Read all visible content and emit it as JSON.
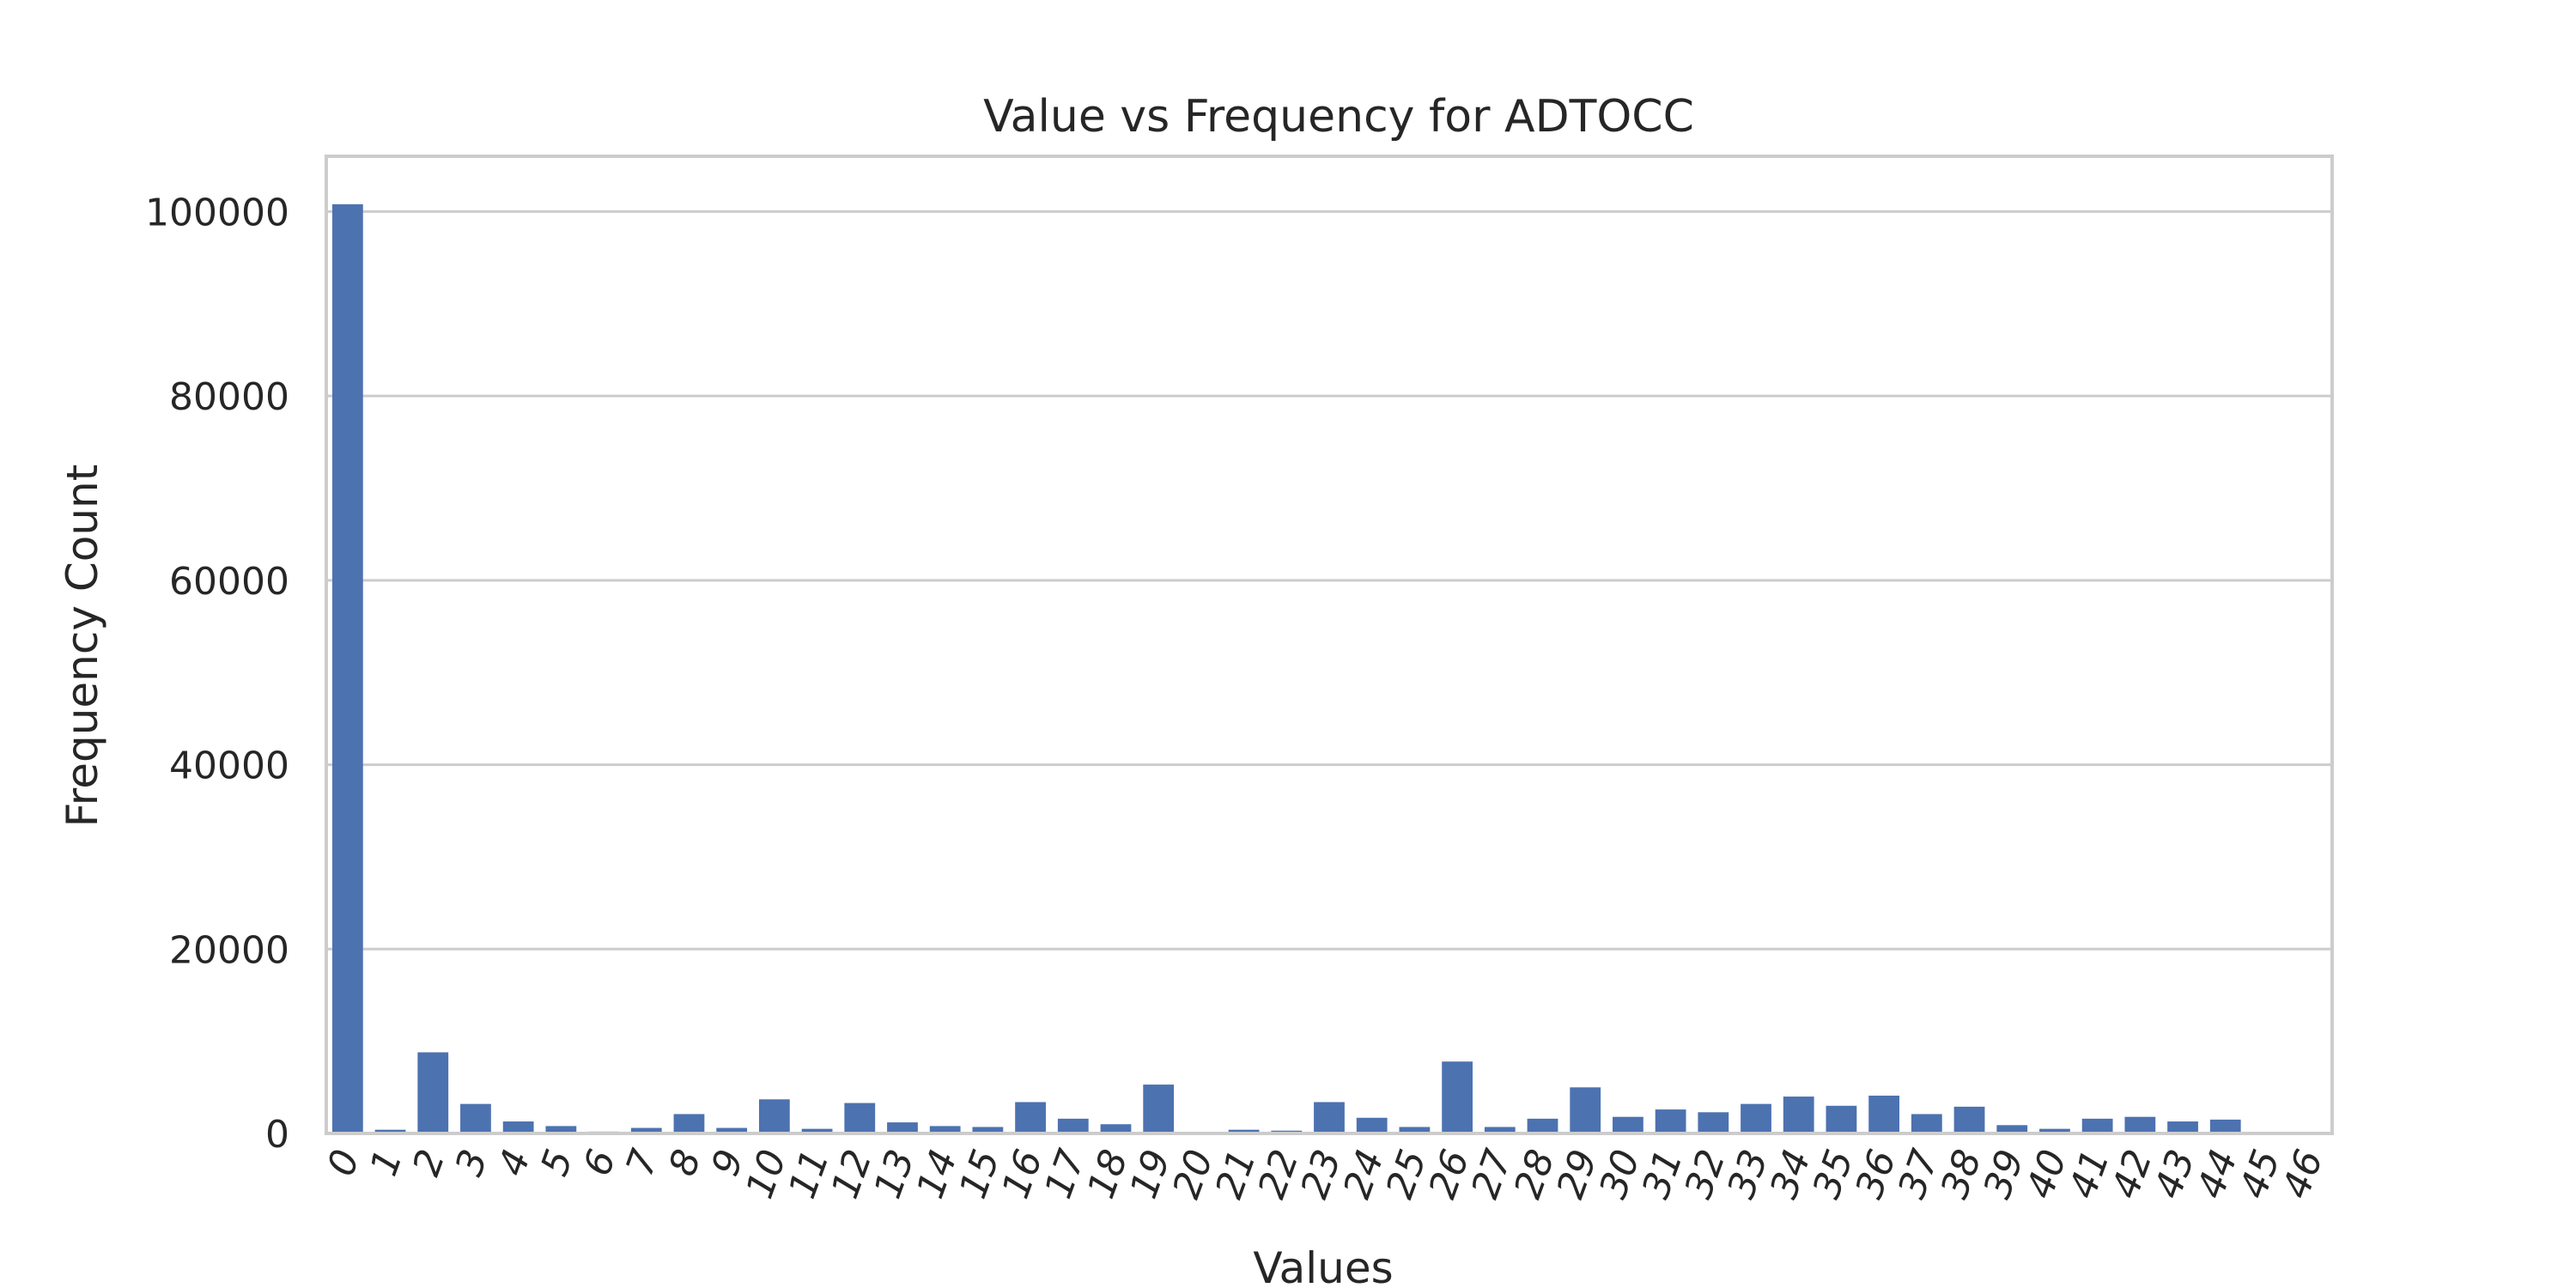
{
  "chart_data": {
    "type": "bar",
    "title": "Value vs Frequency for ADTOCC",
    "xlabel": "Values",
    "ylabel": "Frequency Count",
    "ylim": [
      0,
      106000
    ],
    "yticks": [
      0,
      20000,
      40000,
      60000,
      80000,
      100000
    ],
    "grid": true,
    "bar_color": "#4c72b0",
    "categories": [
      "0",
      "1",
      "2",
      "3",
      "4",
      "5",
      "6",
      "7",
      "8",
      "9",
      "10",
      "11",
      "12",
      "13",
      "14",
      "15",
      "16",
      "17",
      "18",
      "19",
      "20",
      "21",
      "22",
      "23",
      "24",
      "25",
      "26",
      "27",
      "28",
      "29",
      "30",
      "31",
      "32",
      "33",
      "34",
      "35",
      "36",
      "37",
      "38",
      "39",
      "40",
      "41",
      "42",
      "43",
      "44",
      "45",
      "46"
    ],
    "values": [
      100800,
      400,
      8800,
      3200,
      1300,
      800,
      200,
      600,
      2100,
      600,
      3700,
      500,
      3300,
      1200,
      800,
      700,
      3400,
      1600,
      1000,
      5300,
      100,
      400,
      300,
      3400,
      1700,
      700,
      7800,
      700,
      1600,
      5000,
      1800,
      2600,
      2300,
      3200,
      4000,
      3000,
      4100,
      2100,
      2900,
      900,
      500,
      1600,
      1800,
      1300,
      1500,
      100,
      100
    ]
  }
}
